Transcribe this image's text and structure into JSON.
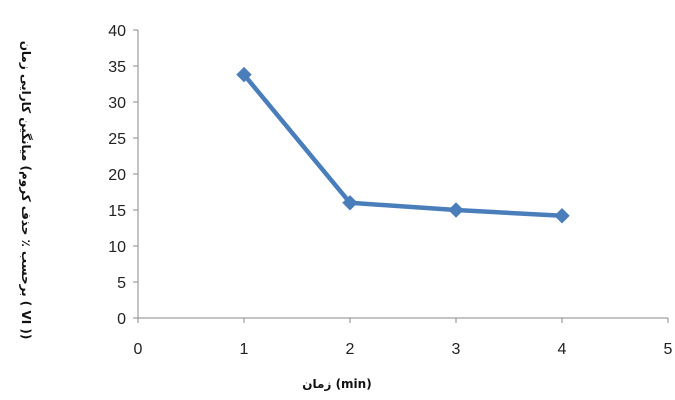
{
  "chart_data": {
    "type": "line",
    "title": "",
    "xlabel": "زمان (min)",
    "ylabel": "میانگین کارایی زمان (برحسب ٪ حذف کروم ( VI ))",
    "xlim": [
      0,
      5
    ],
    "ylim": [
      0,
      40
    ],
    "x_ticks": [
      "0",
      "1",
      "2",
      "3",
      "4",
      "5"
    ],
    "y_ticks": [
      "0",
      "5",
      "10",
      "15",
      "20",
      "25",
      "30",
      "35",
      "40"
    ],
    "grid": false,
    "legend": "none",
    "series": [
      {
        "color": "#4a7ebb",
        "marker": "diamond",
        "x": [
          1,
          2,
          3,
          4
        ],
        "y": [
          33.8,
          16,
          15,
          14.2
        ]
      }
    ]
  }
}
